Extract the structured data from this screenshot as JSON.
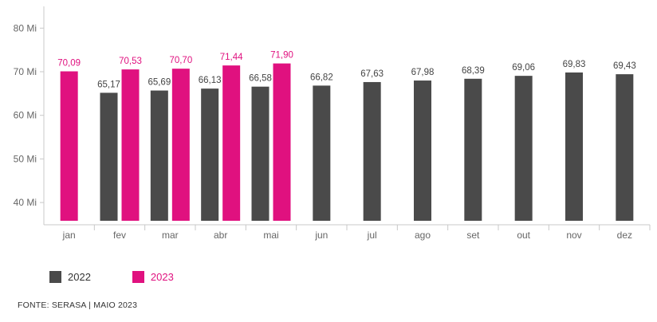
{
  "chart_data": {
    "type": "bar",
    "title": "",
    "xlabel": "",
    "ylabel": "",
    "categories": [
      "jan",
      "fev",
      "mar",
      "abr",
      "mai",
      "jun",
      "jul",
      "ago",
      "set",
      "out",
      "nov",
      "dez"
    ],
    "ylim": [
      35,
      85
    ],
    "yticks": [
      40,
      50,
      60,
      70,
      80
    ],
    "ytick_labels": [
      "40 Mi",
      "50 Mi",
      "60 Mi",
      "70 Mi",
      "80 Mi"
    ],
    "series": [
      {
        "name": "2022",
        "color": "#4a4a4a",
        "values": [
          null,
          65.17,
          65.69,
          66.13,
          66.58,
          66.82,
          67.63,
          67.98,
          68.39,
          69.06,
          69.83,
          69.43
        ],
        "labels": [
          null,
          "65,17",
          "65,69",
          "66,13",
          "66,58",
          "66,82",
          "67,63",
          "67,98",
          "68,39",
          "69,06",
          "69,83",
          "69,43"
        ]
      },
      {
        "name": "2023",
        "color": "#e0117f",
        "values": [
          70.09,
          70.53,
          70.7,
          71.44,
          71.9,
          null,
          null,
          null,
          null,
          null,
          null,
          null
        ],
        "labels": [
          "70,09",
          "70,53",
          "70,70",
          "71,44",
          "71,90",
          null,
          null,
          null,
          null,
          null,
          null,
          null
        ]
      }
    ],
    "legend_position": "bottom-left",
    "grid": false
  },
  "source": "FONTE: SERASA |  MAIO 2023",
  "colors": {
    "axis": "#c8c8c8",
    "text": "#666666",
    "label_2022": "#444444"
  }
}
